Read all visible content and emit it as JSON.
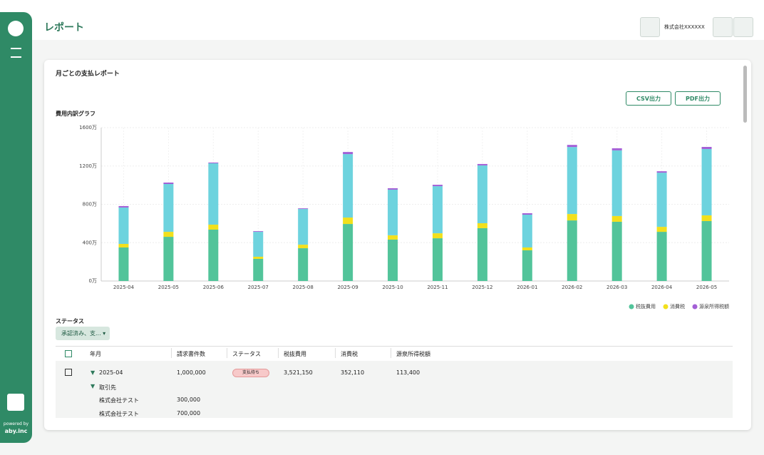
{
  "header": {
    "title": "レポート",
    "company": "株式会社XXXXXX"
  },
  "sidebar": {
    "powered_by": "powered by",
    "brand": "aby.inc"
  },
  "card": {
    "title": "月ごとの支払レポート",
    "csv_button": "CSV出力",
    "pdf_button": "PDF出力"
  },
  "chart_data": {
    "type": "stacked_bar",
    "title": "費用内訳グラフ",
    "categories": [
      "2025-04",
      "2025-05",
      "2025-06",
      "2025-07",
      "2025-08",
      "2025-09",
      "2025-10",
      "2025-11",
      "2025-12",
      "2026-01",
      "2026-02",
      "2026-03",
      "2026-04",
      "2026-05"
    ],
    "series": [
      {
        "name": "税抜費用",
        "color": "#52c49a",
        "values": [
          350,
          461,
          536,
          231,
          342,
          595,
          432,
          446,
          551,
          320,
          632,
          618,
          513,
          625
        ]
      },
      {
        "name": "消費税",
        "color": "#f2e01c",
        "values": [
          37,
          52,
          52,
          22,
          37,
          67,
          45,
          52,
          52,
          30,
          67,
          60,
          52,
          60
        ]
      },
      {
        "color": "#6dd3de",
        "values": [
          380,
          499,
          640,
          260,
          372,
          662,
          476,
          491,
          603,
          342,
          699,
          685,
          565,
          692
        ]
      },
      {
        "name": "源泉所得税額",
        "color": "#a35fd6",
        "values": [
          15,
          15,
          8,
          7,
          7,
          22,
          15,
          15,
          15,
          15,
          22,
          22,
          15,
          22
        ]
      }
    ],
    "ylim": [
      0,
      1600
    ],
    "yticks": [
      {
        "value": 0,
        "label": "0万"
      },
      {
        "value": 400,
        "label": "400万"
      },
      {
        "value": 800,
        "label": "800万"
      },
      {
        "value": 1200,
        "label": "1200万"
      },
      {
        "value": 1600,
        "label": "1600万"
      }
    ],
    "grid": true,
    "legend": "bottom-right"
  },
  "filter": {
    "label": "ステータス",
    "value": "承認済み、支..."
  },
  "table": {
    "headers": [
      "年月",
      "請求書件数",
      "ステータス",
      "税抜費用",
      "消費税",
      "源泉所得税額"
    ],
    "rows": [
      [
        "2025-04",
        "1,000,000",
        "支払待ち",
        "3,521,150",
        "352,110",
        "113,400"
      ]
    ],
    "group_label": "取引先",
    "sub_rows": [
      [
        "株式会社テスト",
        "300,000"
      ],
      [
        "株式会社テスト",
        "700,000"
      ]
    ]
  }
}
